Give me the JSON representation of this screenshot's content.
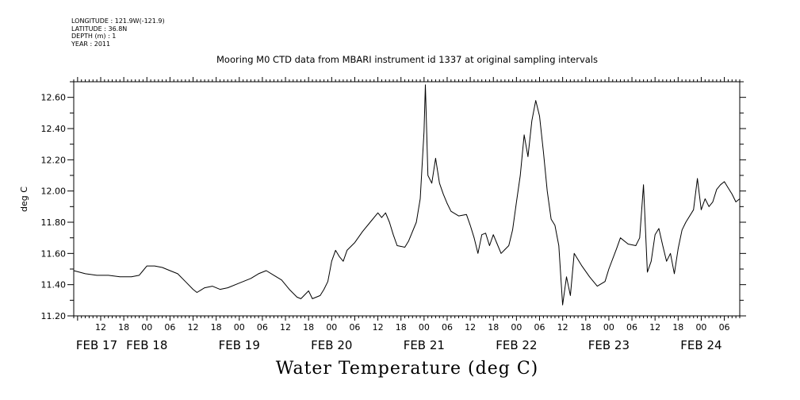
{
  "metadata": {
    "longitude": "LONGITUDE : 121.9W(-121.9)",
    "latitude": "LATITUDE : 36.8N",
    "depth": "DEPTH (m) : 1",
    "year": "YEAR : 2011"
  },
  "chart_data": {
    "type": "line",
    "title": "Mooring M0 CTD data from MBARI instrument id 1337 at original sampling intervals",
    "xlabel": "Water Temperature (deg C)",
    "ylabel": "deg C",
    "ylim": [
      11.2,
      12.7
    ],
    "y_ticks": [
      "11.20",
      "11.40",
      "11.60",
      "11.80",
      "12.00",
      "12.20",
      "12.40",
      "12.60"
    ],
    "xlim": [
      "2011-02-17T05:00",
      "2011-02-24T10:00"
    ],
    "x_hour_ticks": [
      {
        "t": "2011-02-17T12:00",
        "label": "12"
      },
      {
        "t": "2011-02-17T18:00",
        "label": "18"
      },
      {
        "t": "2011-02-18T00:00",
        "label": "00"
      },
      {
        "t": "2011-02-18T06:00",
        "label": "06"
      },
      {
        "t": "2011-02-18T12:00",
        "label": "12"
      },
      {
        "t": "2011-02-18T18:00",
        "label": "18"
      },
      {
        "t": "2011-02-19T00:00",
        "label": "00"
      },
      {
        "t": "2011-02-19T06:00",
        "label": "06"
      },
      {
        "t": "2011-02-19T12:00",
        "label": "12"
      },
      {
        "t": "2011-02-19T18:00",
        "label": "18"
      },
      {
        "t": "2011-02-20T00:00",
        "label": "00"
      },
      {
        "t": "2011-02-20T06:00",
        "label": "06"
      },
      {
        "t": "2011-02-20T12:00",
        "label": "12"
      },
      {
        "t": "2011-02-20T18:00",
        "label": "18"
      },
      {
        "t": "2011-02-21T00:00",
        "label": "00"
      },
      {
        "t": "2011-02-21T06:00",
        "label": "06"
      },
      {
        "t": "2011-02-21T12:00",
        "label": "12"
      },
      {
        "t": "2011-02-21T18:00",
        "label": "18"
      },
      {
        "t": "2011-02-22T00:00",
        "label": "00"
      },
      {
        "t": "2011-02-22T06:00",
        "label": "06"
      },
      {
        "t": "2011-02-22T12:00",
        "label": "12"
      },
      {
        "t": "2011-02-22T18:00",
        "label": "18"
      },
      {
        "t": "2011-02-23T00:00",
        "label": "00"
      },
      {
        "t": "2011-02-23T06:00",
        "label": "06"
      },
      {
        "t": "2011-02-23T12:00",
        "label": "12"
      },
      {
        "t": "2011-02-23T18:00",
        "label": "18"
      },
      {
        "t": "2011-02-24T00:00",
        "label": "00"
      },
      {
        "t": "2011-02-24T06:00",
        "label": "06"
      }
    ],
    "x_day_labels": [
      {
        "t": "2011-02-17T00:00",
        "label": "FEB 17"
      },
      {
        "t": "2011-02-18T00:00",
        "label": "FEB 18"
      },
      {
        "t": "2011-02-19T00:00",
        "label": "FEB 19"
      },
      {
        "t": "2011-02-20T00:00",
        "label": "FEB 20"
      },
      {
        "t": "2011-02-21T00:00",
        "label": "FEB 21"
      },
      {
        "t": "2011-02-22T00:00",
        "label": "FEB 22"
      },
      {
        "t": "2011-02-23T00:00",
        "label": "FEB 23"
      },
      {
        "t": "2011-02-24T00:00",
        "label": "FEB 24"
      }
    ],
    "series": [
      {
        "color": "#000000",
        "points": [
          [
            "2011-02-17T05:00",
            11.49
          ],
          [
            "2011-02-17T08:00",
            11.47
          ],
          [
            "2011-02-17T11:00",
            11.46
          ],
          [
            "2011-02-17T14:00",
            11.46
          ],
          [
            "2011-02-17T17:00",
            11.45
          ],
          [
            "2011-02-17T20:00",
            11.45
          ],
          [
            "2011-02-17T22:00",
            11.46
          ],
          [
            "2011-02-17T23:00",
            11.49
          ],
          [
            "2011-02-18T00:00",
            11.52
          ],
          [
            "2011-02-18T02:00",
            11.52
          ],
          [
            "2011-02-18T04:00",
            11.51
          ],
          [
            "2011-02-18T06:00",
            11.49
          ],
          [
            "2011-02-18T08:00",
            11.47
          ],
          [
            "2011-02-18T10:00",
            11.42
          ],
          [
            "2011-02-18T12:00",
            11.37
          ],
          [
            "2011-02-18T13:00",
            11.35
          ],
          [
            "2011-02-18T15:00",
            11.38
          ],
          [
            "2011-02-18T17:00",
            11.39
          ],
          [
            "2011-02-18T19:00",
            11.37
          ],
          [
            "2011-02-18T21:00",
            11.38
          ],
          [
            "2011-02-19T00:00",
            11.41
          ],
          [
            "2011-02-19T03:00",
            11.44
          ],
          [
            "2011-02-19T05:00",
            11.47
          ],
          [
            "2011-02-19T07:00",
            11.49
          ],
          [
            "2011-02-19T09:00",
            11.46
          ],
          [
            "2011-02-19T11:00",
            11.43
          ],
          [
            "2011-02-19T13:00",
            11.37
          ],
          [
            "2011-02-19T15:00",
            11.32
          ],
          [
            "2011-02-19T16:00",
            11.31
          ],
          [
            "2011-02-19T18:00",
            11.36
          ],
          [
            "2011-02-19T19:00",
            11.31
          ],
          [
            "2011-02-19T21:00",
            11.33
          ],
          [
            "2011-02-19T22:00",
            11.37
          ],
          [
            "2011-02-19T23:00",
            11.42
          ],
          [
            "2011-02-20T00:00",
            11.55
          ],
          [
            "2011-02-20T01:00",
            11.62
          ],
          [
            "2011-02-20T02:00",
            11.58
          ],
          [
            "2011-02-20T03:00",
            11.55
          ],
          [
            "2011-02-20T04:00",
            11.62
          ],
          [
            "2011-02-20T06:00",
            11.67
          ],
          [
            "2011-02-20T08:00",
            11.74
          ],
          [
            "2011-02-20T10:00",
            11.8
          ],
          [
            "2011-02-20T12:00",
            11.86
          ],
          [
            "2011-02-20T13:00",
            11.83
          ],
          [
            "2011-02-20T14:00",
            11.86
          ],
          [
            "2011-02-20T15:00",
            11.8
          ],
          [
            "2011-02-20T16:00",
            11.72
          ],
          [
            "2011-02-20T17:00",
            11.65
          ],
          [
            "2011-02-20T19:00",
            11.64
          ],
          [
            "2011-02-20T20:00",
            11.68
          ],
          [
            "2011-02-20T22:00",
            11.8
          ],
          [
            "2011-02-20T23:00",
            11.95
          ],
          [
            "2011-02-21T00:00",
            12.38
          ],
          [
            "2011-02-21T00:20",
            12.68
          ],
          [
            "2011-02-21T01:00",
            12.1
          ],
          [
            "2011-02-21T02:00",
            12.05
          ],
          [
            "2011-02-21T03:00",
            12.21
          ],
          [
            "2011-02-21T04:00",
            12.05
          ],
          [
            "2011-02-21T05:00",
            11.98
          ],
          [
            "2011-02-21T06:00",
            11.92
          ],
          [
            "2011-02-21T07:00",
            11.87
          ],
          [
            "2011-02-21T09:00",
            11.84
          ],
          [
            "2011-02-21T11:00",
            11.85
          ],
          [
            "2011-02-21T12:00",
            11.78
          ],
          [
            "2011-02-21T13:00",
            11.7
          ],
          [
            "2011-02-21T14:00",
            11.6
          ],
          [
            "2011-02-21T15:00",
            11.72
          ],
          [
            "2011-02-21T16:00",
            11.73
          ],
          [
            "2011-02-21T17:00",
            11.65
          ],
          [
            "2011-02-21T18:00",
            11.72
          ],
          [
            "2011-02-21T19:00",
            11.66
          ],
          [
            "2011-02-21T20:00",
            11.6
          ],
          [
            "2011-02-21T22:00",
            11.65
          ],
          [
            "2011-02-21T23:00",
            11.75
          ],
          [
            "2011-02-22T00:00",
            11.93
          ],
          [
            "2011-02-22T01:00",
            12.1
          ],
          [
            "2011-02-22T02:00",
            12.36
          ],
          [
            "2011-02-22T03:00",
            12.22
          ],
          [
            "2011-02-22T04:00",
            12.45
          ],
          [
            "2011-02-22T05:00",
            12.58
          ],
          [
            "2011-02-22T06:00",
            12.48
          ],
          [
            "2011-02-22T07:00",
            12.25
          ],
          [
            "2011-02-22T08:00",
            12.0
          ],
          [
            "2011-02-22T09:00",
            11.82
          ],
          [
            "2011-02-22T10:00",
            11.78
          ],
          [
            "2011-02-22T11:00",
            11.65
          ],
          [
            "2011-02-22T12:00",
            11.27
          ],
          [
            "2011-02-22T13:00",
            11.45
          ],
          [
            "2011-02-22T14:00",
            11.33
          ],
          [
            "2011-02-22T15:00",
            11.6
          ],
          [
            "2011-02-22T17:00",
            11.52
          ],
          [
            "2011-02-22T19:00",
            11.45
          ],
          [
            "2011-02-22T21:00",
            11.39
          ],
          [
            "2011-02-22T23:00",
            11.42
          ],
          [
            "2011-02-23T00:00",
            11.5
          ],
          [
            "2011-02-23T02:00",
            11.63
          ],
          [
            "2011-02-23T03:00",
            11.7
          ],
          [
            "2011-02-23T05:00",
            11.66
          ],
          [
            "2011-02-23T07:00",
            11.65
          ],
          [
            "2011-02-23T08:00",
            11.7
          ],
          [
            "2011-02-23T09:00",
            12.04
          ],
          [
            "2011-02-23T10:00",
            11.48
          ],
          [
            "2011-02-23T11:00",
            11.55
          ],
          [
            "2011-02-23T12:00",
            11.72
          ],
          [
            "2011-02-23T13:00",
            11.76
          ],
          [
            "2011-02-23T14:00",
            11.65
          ],
          [
            "2011-02-23T15:00",
            11.55
          ],
          [
            "2011-02-23T16:00",
            11.6
          ],
          [
            "2011-02-23T17:00",
            11.47
          ],
          [
            "2011-02-23T18:00",
            11.63
          ],
          [
            "2011-02-23T19:00",
            11.75
          ],
          [
            "2011-02-23T20:00",
            11.8
          ],
          [
            "2011-02-23T22:00",
            11.88
          ],
          [
            "2011-02-23T23:00",
            12.08
          ],
          [
            "2011-02-24T00:00",
            11.88
          ],
          [
            "2011-02-24T01:00",
            11.95
          ],
          [
            "2011-02-24T02:00",
            11.9
          ],
          [
            "2011-02-24T03:00",
            11.93
          ],
          [
            "2011-02-24T04:00",
            12.01
          ],
          [
            "2011-02-24T05:00",
            12.04
          ],
          [
            "2011-02-24T06:00",
            12.06
          ],
          [
            "2011-02-24T07:00",
            12.02
          ],
          [
            "2011-02-24T08:00",
            11.98
          ],
          [
            "2011-02-24T09:00",
            11.93
          ],
          [
            "2011-02-24T10:00",
            11.95
          ]
        ]
      }
    ]
  }
}
